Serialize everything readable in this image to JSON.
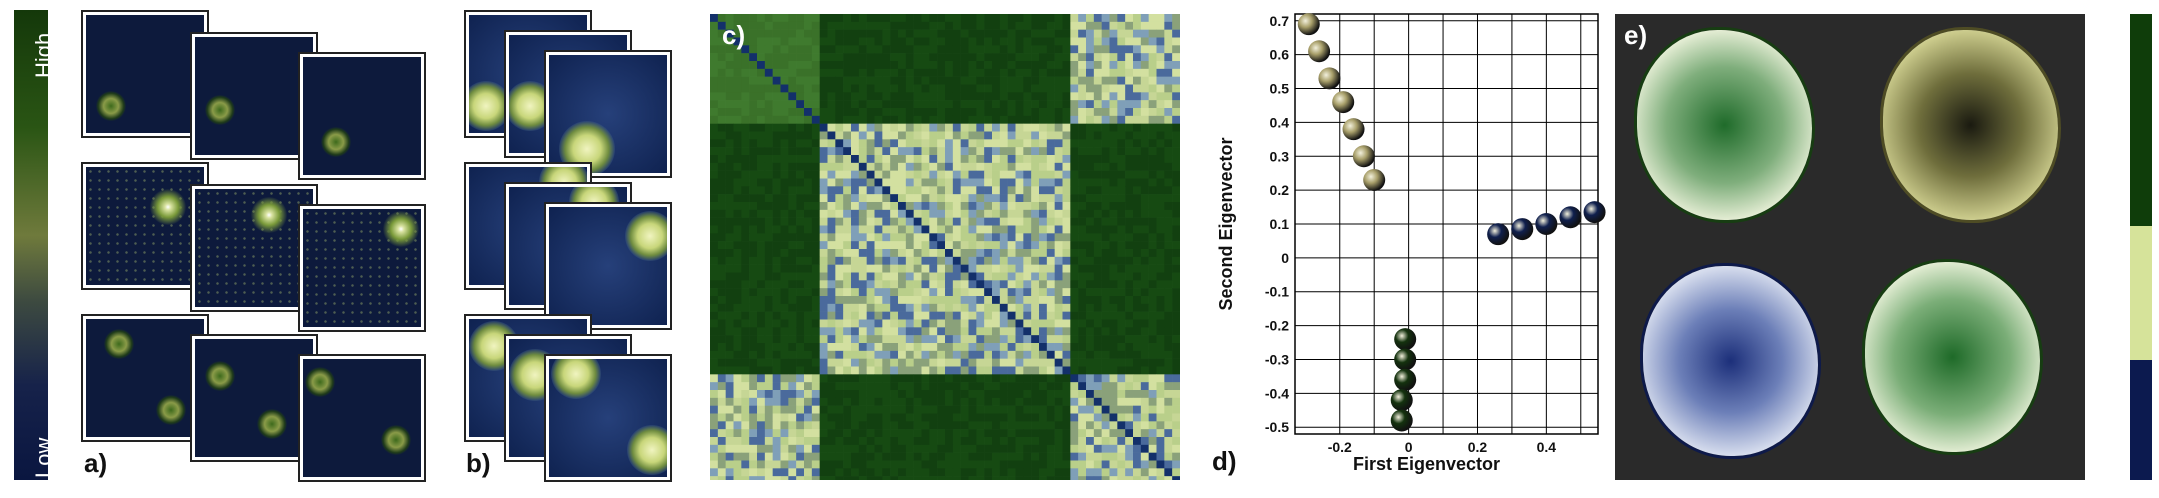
{
  "scale": {
    "high_label": "High",
    "low_label": "Low"
  },
  "panels": {
    "a": "a)",
    "b": "b)",
    "c": "c)",
    "d": "d)",
    "e": "e)"
  },
  "colors": {
    "dark_green": "#0f3d0a",
    "light_yellow_green": "#d6e39a",
    "navy": "#0c1a4f",
    "olive": "#6b7431"
  },
  "chart_data": {
    "type": "scatter",
    "title": "",
    "xlabel": "First Eigenvector",
    "ylabel": "Second Eigenvector",
    "xlim": [
      -0.33,
      0.55
    ],
    "ylim": [
      -0.52,
      0.72
    ],
    "grid": true,
    "x_ticks": [
      "-0.2",
      "0",
      "0.2",
      "0.4"
    ],
    "x_tick_values": [
      -0.2,
      0,
      0.2,
      0.4
    ],
    "y_ticks": [
      "0.7",
      "0.6",
      "0.5",
      "0.4",
      "0.3",
      "0.2",
      "0.1",
      "0",
      "-0.1",
      "-0.2",
      "-0.3",
      "-0.4",
      "-0.5"
    ],
    "y_tick_values": [
      0.7,
      0.6,
      0.5,
      0.4,
      0.3,
      0.2,
      0.1,
      0,
      -0.1,
      -0.2,
      -0.3,
      -0.4,
      -0.5
    ],
    "series": [
      {
        "color": "#a89f6a",
        "points": [
          [
            -0.29,
            0.69
          ],
          [
            -0.26,
            0.61
          ],
          [
            -0.23,
            0.53
          ],
          [
            -0.19,
            0.46
          ],
          [
            -0.16,
            0.38
          ],
          [
            -0.13,
            0.3
          ],
          [
            -0.1,
            0.23
          ]
        ]
      },
      {
        "color": "#0f1f4d",
        "points": [
          [
            0.26,
            0.07
          ],
          [
            0.33,
            0.085
          ],
          [
            0.4,
            0.1
          ],
          [
            0.47,
            0.12
          ],
          [
            0.54,
            0.135
          ]
        ]
      },
      {
        "color": "#14320e",
        "points": [
          [
            -0.01,
            -0.24
          ],
          [
            -0.01,
            -0.3
          ],
          [
            -0.01,
            -0.36
          ],
          [
            -0.02,
            -0.42
          ],
          [
            -0.02,
            -0.48
          ]
        ]
      }
    ]
  }
}
